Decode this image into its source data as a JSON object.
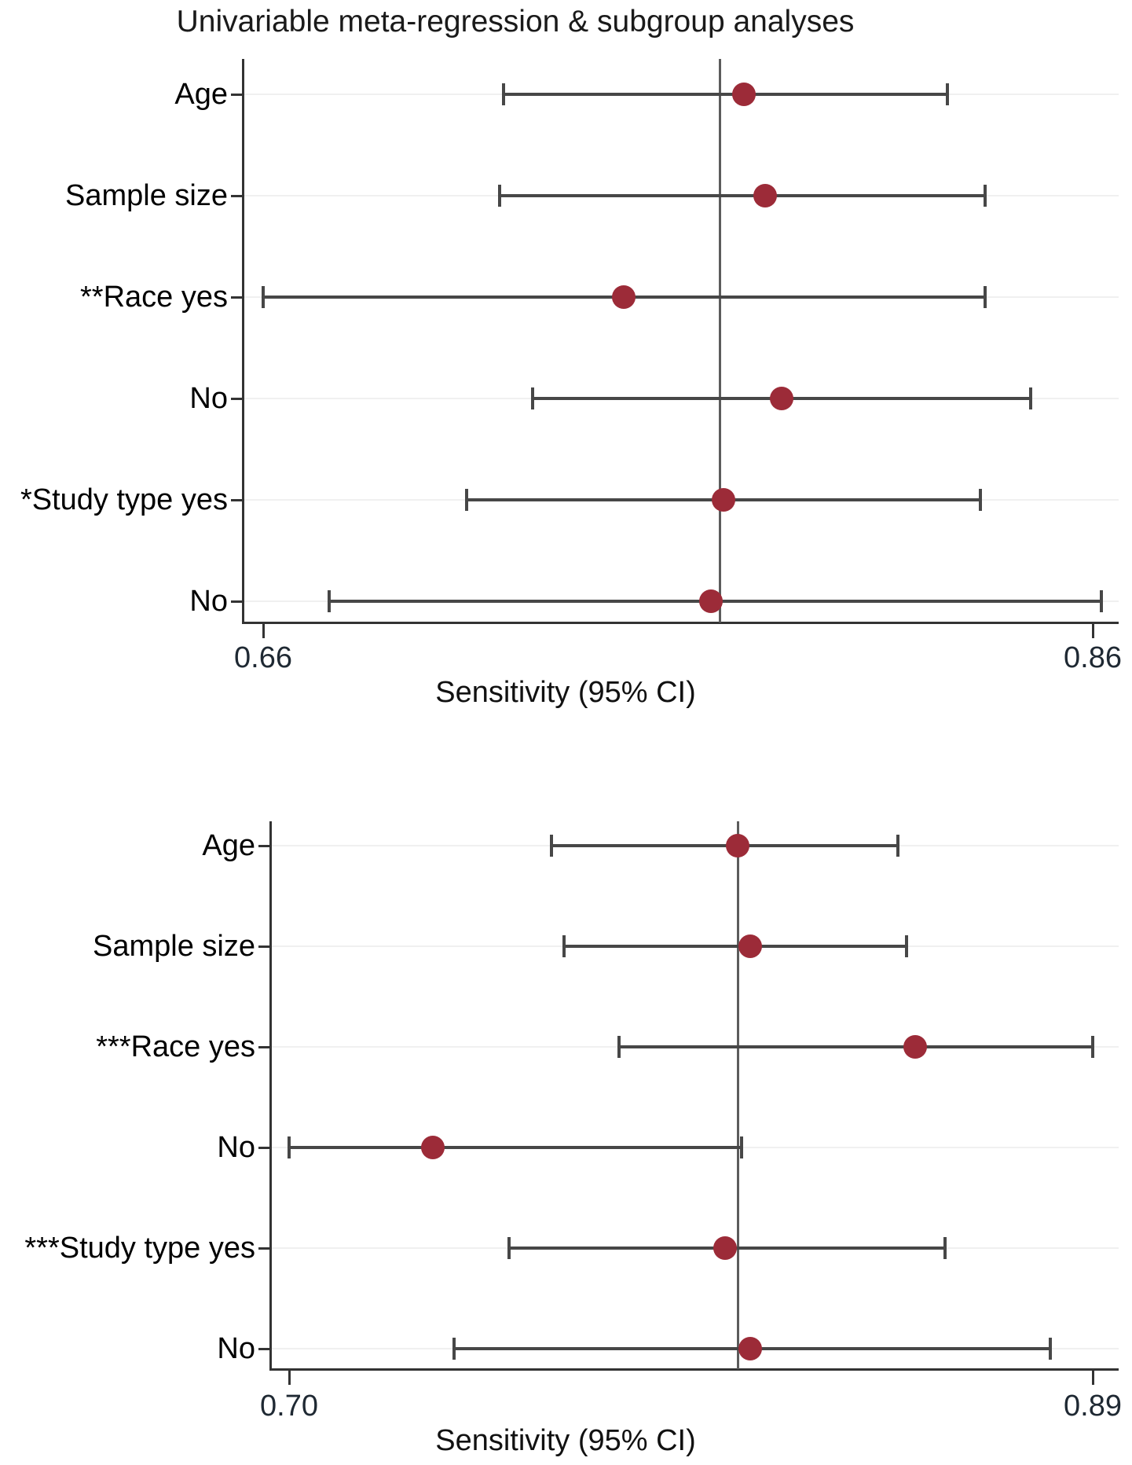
{
  "title": "Univariable meta-regression & subgroup analyses",
  "chart_data": [
    {
      "type": "scatter",
      "subtype": "forest-plot",
      "title": "Univariable meta-regression & subgroup analyses",
      "xlabel": "Sensitivity (95% CI)",
      "xlim": [
        0.66,
        0.86
      ],
      "x_ticks": [
        0.66,
        0.86
      ],
      "x_tick_labels": [
        "0.66",
        "0.86"
      ],
      "ref_line": 0.77,
      "grid": "light horizontal line per category row",
      "legend": "none",
      "categories": [
        "Age",
        "Sample size",
        "**Race yes",
        "No",
        "*Study type yes",
        "No"
      ],
      "series": [
        {
          "name": "Sensitivity point estimate",
          "values": [
            0.776,
            0.781,
            0.747,
            0.785,
            0.771,
            0.768
          ]
        }
      ],
      "ci_low": [
        0.718,
        0.717,
        0.66,
        0.725,
        0.709,
        0.676
      ],
      "ci_high": [
        0.825,
        0.834,
        0.834,
        0.845,
        0.833,
        0.862
      ]
    },
    {
      "type": "scatter",
      "subtype": "forest-plot",
      "title": "",
      "xlabel": "Sensitivity (95% CI)",
      "xlim": [
        0.7,
        0.89
      ],
      "x_ticks": [
        0.7,
        0.89
      ],
      "x_tick_labels": [
        "0.70",
        "0.89"
      ],
      "ref_line": 0.806,
      "grid": "light horizontal line per category row",
      "legend": "none",
      "categories": [
        "Age",
        "Sample size",
        "***Race yes",
        "No",
        "***Study type yes",
        "No"
      ],
      "series": [
        {
          "name": "Sensitivity point estimate",
          "values": [
            0.806,
            0.809,
            0.848,
            0.734,
            0.803,
            0.809
          ]
        }
      ],
      "ci_low": [
        0.762,
        0.765,
        0.778,
        0.7,
        0.752,
        0.739
      ],
      "ci_high": [
        0.844,
        0.846,
        0.89,
        0.807,
        0.855,
        0.88
      ]
    }
  ],
  "colors": {
    "marker": "#9c2b38",
    "whisker": "#474747",
    "axis": "#333333",
    "ref_line": "#5c5c5c",
    "gridline": "#f0f0f0",
    "background": "#ffffff"
  }
}
